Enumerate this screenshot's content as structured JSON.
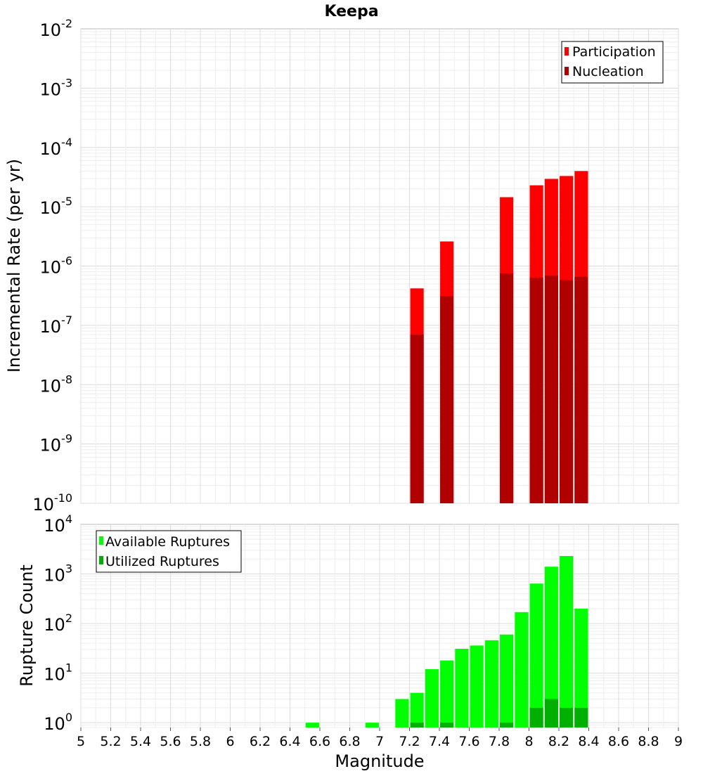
{
  "chart_data": [
    {
      "type": "bar",
      "title": "Keepa",
      "xlabel": "",
      "ylabel": "Incremental Rate (per yr)",
      "yscale": "log",
      "ylim": [
        1e-10,
        0.01
      ],
      "xlim": [
        5,
        9
      ],
      "yticks": [
        "10^-10",
        "10^-9",
        "10^-8",
        "10^-7",
        "10^-6",
        "10^-5",
        "10^-4",
        "10^-3",
        "10^-2"
      ],
      "legend_position": "top-right",
      "grid": true,
      "series": [
        {
          "name": "Participation",
          "color": "#ff0000",
          "points": [
            {
              "x": 7.25,
              "y": 4.2e-07
            },
            {
              "x": 7.45,
              "y": 2.6e-06
            },
            {
              "x": 7.85,
              "y": 1.45e-05
            },
            {
              "x": 8.05,
              "y": 2.3e-05
            },
            {
              "x": 8.15,
              "y": 2.95e-05
            },
            {
              "x": 8.25,
              "y": 3.3e-05
            },
            {
              "x": 8.35,
              "y": 4e-05
            }
          ]
        },
        {
          "name": "Nucleation",
          "color": "#b00000",
          "points": [
            {
              "x": 7.25,
              "y": 7e-08
            },
            {
              "x": 7.45,
              "y": 3.1e-07
            },
            {
              "x": 7.85,
              "y": 7.5e-07
            },
            {
              "x": 8.05,
              "y": 6.4e-07
            },
            {
              "x": 8.15,
              "y": 6.9e-07
            },
            {
              "x": 8.25,
              "y": 5.8e-07
            },
            {
              "x": 8.35,
              "y": 6.6e-07
            }
          ]
        }
      ]
    },
    {
      "type": "bar",
      "title": "",
      "xlabel": "Magnitude",
      "ylabel": "Rupture Count",
      "yscale": "log",
      "ylim": [
        0.8,
        10000
      ],
      "xlim": [
        5,
        9
      ],
      "yticks": [
        "10^0",
        "10^1",
        "10^2",
        "10^3",
        "10^4"
      ],
      "xticks": [
        "5",
        "5.2",
        "5.4",
        "5.6",
        "5.8",
        "6",
        "6.2",
        "6.4",
        "6.6",
        "6.8",
        "7",
        "7.2",
        "7.4",
        "7.6",
        "7.8",
        "8",
        "8.2",
        "8.4",
        "8.6",
        "8.8",
        "9"
      ],
      "legend_position": "top-left",
      "grid": true,
      "series": [
        {
          "name": "Available Ruptures",
          "color": "#00ff00",
          "points": [
            {
              "x": 6.55,
              "y": 1
            },
            {
              "x": 6.95,
              "y": 1
            },
            {
              "x": 7.15,
              "y": 3
            },
            {
              "x": 7.25,
              "y": 4
            },
            {
              "x": 7.35,
              "y": 12
            },
            {
              "x": 7.45,
              "y": 18
            },
            {
              "x": 7.55,
              "y": 31
            },
            {
              "x": 7.65,
              "y": 36
            },
            {
              "x": 7.75,
              "y": 46
            },
            {
              "x": 7.85,
              "y": 60
            },
            {
              "x": 7.95,
              "y": 170
            },
            {
              "x": 8.05,
              "y": 640
            },
            {
              "x": 8.15,
              "y": 1400
            },
            {
              "x": 8.25,
              "y": 2300
            },
            {
              "x": 8.35,
              "y": 200
            }
          ]
        },
        {
          "name": "Utilized Ruptures",
          "color": "#00b000",
          "points": [
            {
              "x": 7.25,
              "y": 1
            },
            {
              "x": 7.45,
              "y": 1
            },
            {
              "x": 7.85,
              "y": 1
            },
            {
              "x": 8.05,
              "y": 2
            },
            {
              "x": 8.15,
              "y": 3
            },
            {
              "x": 8.25,
              "y": 2
            },
            {
              "x": 8.35,
              "y": 2
            }
          ]
        }
      ]
    }
  ]
}
